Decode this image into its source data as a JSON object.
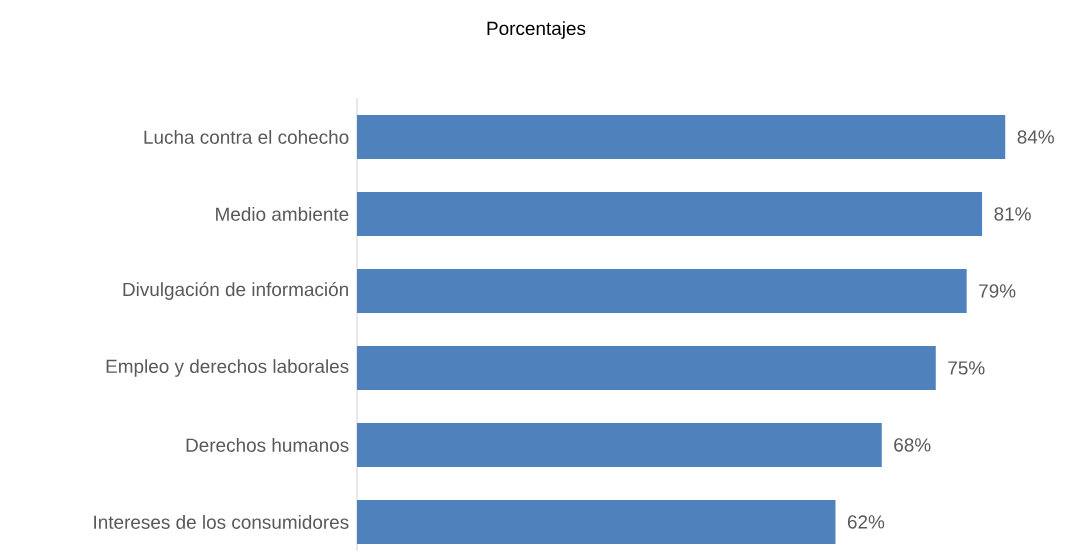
{
  "chart_data": {
    "type": "bar",
    "orientation": "horizontal",
    "title": "Porcentajes",
    "categories": [
      "Lucha contra el cohecho",
      "Medio ambiente",
      "Divulgación de información",
      "Empleo y derechos laborales",
      "Derechos humanos",
      "Intereses de los consumidores"
    ],
    "values": [
      84,
      81,
      79,
      75,
      68,
      62
    ],
    "value_labels": [
      "84%",
      "81%",
      "79%",
      "75%",
      "68%",
      "62%"
    ],
    "color": "#4f81bd"
  }
}
